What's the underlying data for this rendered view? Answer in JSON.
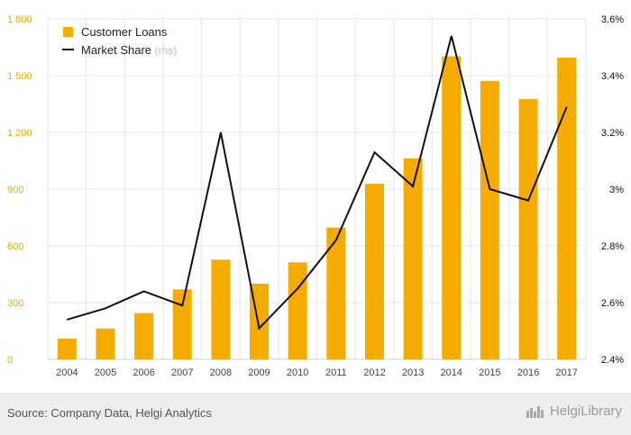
{
  "chart_data": {
    "type": "bar",
    "categories": [
      "2004",
      "2005",
      "2006",
      "2007",
      "2008",
      "2009",
      "2010",
      "2011",
      "2012",
      "2013",
      "2014",
      "2015",
      "2016",
      "2017"
    ],
    "series": [
      {
        "name": "Customer Loans",
        "type": "bar",
        "axis": "left",
        "values": [
          110,
          163,
          245,
          370,
          527,
          400,
          513,
          697,
          928,
          1063,
          1602,
          1472,
          1376,
          1595
        ]
      },
      {
        "name": "Market Share",
        "type": "line",
        "axis": "right",
        "values": [
          2.54,
          2.58,
          2.64,
          2.59,
          3.2,
          2.51,
          2.65,
          2.82,
          3.13,
          3.01,
          3.54,
          3.0,
          2.96,
          3.29
        ]
      }
    ],
    "ylim": [
      0,
      1800
    ],
    "yticks": [
      "0",
      "300",
      "600",
      "900",
      "1 200",
      "1 500",
      "1 800"
    ],
    "y2lim": [
      2.4,
      3.6
    ],
    "y2ticks": [
      "2.4%",
      "2.6%",
      "2.8%",
      "3%",
      "3.2%",
      "3.4%",
      "3.6%"
    ],
    "legend": {
      "placement": "top-left",
      "bar_label": "Customer Loans",
      "line_label": "Market Share",
      "line_suffix": "(rhs)"
    },
    "grid": true,
    "colors": {
      "bar": "#f5ab00",
      "line": "#111111",
      "left_axis": "#f0a800",
      "grid": "#e6e6e6"
    }
  },
  "footer": {
    "source": "Source: Company Data, Helgi Analytics",
    "brand": "HelgiLibrary"
  }
}
